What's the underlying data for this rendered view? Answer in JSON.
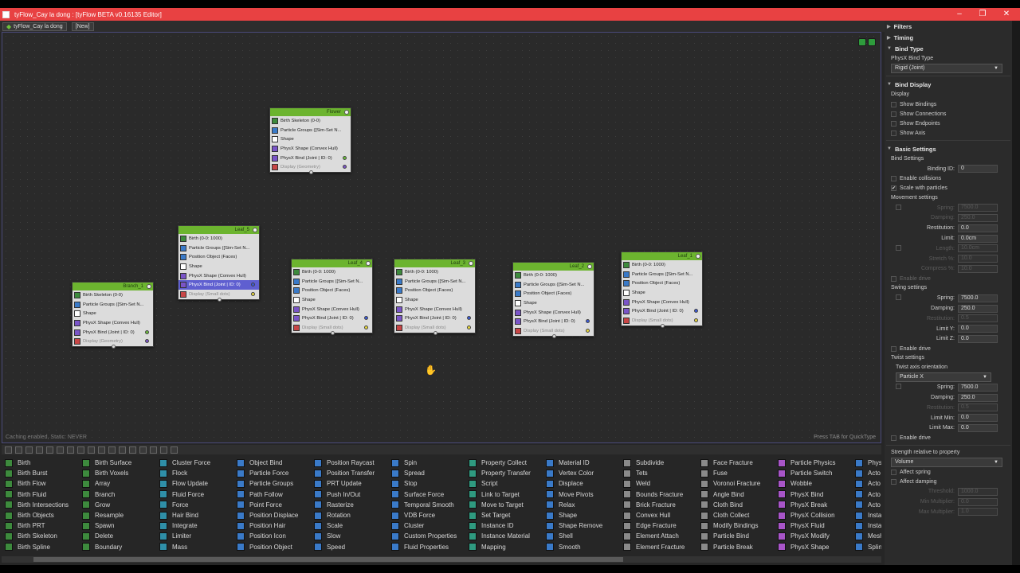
{
  "window": {
    "title": "tyFlow_Cay la dong : [tyFlow BETA v0.16135 Editor]"
  },
  "tabs": [
    "tyFlow_Cay la dong",
    "[New]"
  ],
  "editor": {
    "hint": "Press TAB for QuickType",
    "status": "Caching enabled, Static: NEVER"
  },
  "nodes": [
    {
      "name": "Flower",
      "ops": [
        {
          "label": "Birth Skeleton (0-0)",
          "color": "#3d8a3d"
        },
        {
          "label": "Particle Groups ([Sim-Set N...",
          "color": "#3a7ac8"
        },
        {
          "label": "Shape",
          "color": "#ffffff"
        },
        {
          "label": "PhysX Shape (Convex Hull)",
          "color": "#7a55c8"
        },
        {
          "label": "PhysX Bind (Joint | ID: 0)",
          "color": "#7a55c8",
          "dot": "#6cbf3c"
        },
        {
          "label": "Display (Geometry)",
          "color": "#c84646",
          "dim": true,
          "dot": "#7a55c8"
        }
      ]
    },
    {
      "name": "Leaf_5",
      "ops": [
        {
          "label": "Birth (0-0: 1000)",
          "color": "#3d8a3d"
        },
        {
          "label": "Particle Groups ([Sim-Set N...",
          "color": "#3a7ac8"
        },
        {
          "label": "Position Object (Faces)",
          "color": "#3a7ac8"
        },
        {
          "label": "Shape",
          "color": "#ffffff"
        },
        {
          "label": "PhysX Shape (Convex Hull)",
          "color": "#7a55c8"
        },
        {
          "label": "PhysX Bind (Joint | ID: 0)",
          "color": "#7a55c8",
          "sel": true,
          "dot": "#3a5ad8"
        },
        {
          "label": "Display (Small dots)",
          "color": "#c84646",
          "dim": true,
          "dot": "#e8d83a"
        }
      ]
    },
    {
      "name": "Branch_1",
      "ops": [
        {
          "label": "Birth Skeleton (0-0)",
          "color": "#3d8a3d"
        },
        {
          "label": "Particle Groups ([Sim-Set N...",
          "color": "#3a7ac8"
        },
        {
          "label": "Shape",
          "color": "#ffffff"
        },
        {
          "label": "PhysX Shape (Convex Hull)",
          "color": "#7a55c8"
        },
        {
          "label": "PhysX Bind (Joint | ID: 0)",
          "color": "#7a55c8",
          "dot": "#6cbf3c"
        },
        {
          "label": "Display (Geometry)",
          "color": "#c84646",
          "dim": true,
          "dot": "#7a55c8"
        }
      ]
    },
    {
      "name": "Leaf_4",
      "ops": [
        {
          "label": "Birth (0-0: 1000)",
          "color": "#3d8a3d"
        },
        {
          "label": "Particle Groups ([Sim-Set N...",
          "color": "#3a7ac8"
        },
        {
          "label": "Position Object (Faces)",
          "color": "#3a7ac8"
        },
        {
          "label": "Shape",
          "color": "#ffffff"
        },
        {
          "label": "PhysX Shape (Convex Hull)",
          "color": "#7a55c8"
        },
        {
          "label": "PhysX Bind (Joint | ID: 0)",
          "color": "#7a55c8",
          "dot": "#3a5ad8"
        },
        {
          "label": "Display (Small dots)",
          "color": "#c84646",
          "dim": true,
          "dot": "#e8d83a"
        }
      ]
    },
    {
      "name": "Leaf_3",
      "ops": [
        {
          "label": "Birth (0-0: 1000)",
          "color": "#3d8a3d"
        },
        {
          "label": "Particle Groups ([Sim-Set N...",
          "color": "#3a7ac8"
        },
        {
          "label": "Position Object (Faces)",
          "color": "#3a7ac8"
        },
        {
          "label": "Shape",
          "color": "#ffffff"
        },
        {
          "label": "PhysX Shape (Convex Hull)",
          "color": "#7a55c8"
        },
        {
          "label": "PhysX Bind (Joint | ID: 0)",
          "color": "#7a55c8",
          "dot": "#3a5ad8"
        },
        {
          "label": "Display (Small dots)",
          "color": "#c84646",
          "dim": true,
          "dot": "#e8d83a"
        }
      ]
    },
    {
      "name": "Leaf_2",
      "ops": [
        {
          "label": "Birth (0-0: 1000)",
          "color": "#3d8a3d"
        },
        {
          "label": "Particle Groups ([Sim-Set N...",
          "color": "#3a7ac8"
        },
        {
          "label": "Position Object (Faces)",
          "color": "#3a7ac8"
        },
        {
          "label": "Shape",
          "color": "#ffffff"
        },
        {
          "label": "PhysX Shape (Convex Hull)",
          "color": "#7a55c8"
        },
        {
          "label": "PhysX Bind (Joint | ID: 0)",
          "color": "#7a55c8",
          "dot": "#3a5ad8"
        },
        {
          "label": "Display (Small dots)",
          "color": "#c84646",
          "dim": true,
          "dot": "#e8d83a"
        }
      ]
    },
    {
      "name": "Leaf_1",
      "ops": [
        {
          "label": "Birth (0-0: 1000)",
          "color": "#3d8a3d"
        },
        {
          "label": "Particle Groups ([Sim-Set N...",
          "color": "#3a7ac8"
        },
        {
          "label": "Position Object (Faces)",
          "color": "#3a7ac8"
        },
        {
          "label": "Shape",
          "color": "#ffffff"
        },
        {
          "label": "PhysX Shape (Convex Hull)",
          "color": "#7a55c8"
        },
        {
          "label": "PhysX Bind (Joint | ID: 0)",
          "color": "#7a55c8",
          "dot": "#3a5ad8"
        },
        {
          "label": "Display (Small dots)",
          "color": "#c84646",
          "dim": true,
          "dot": "#e8d83a"
        }
      ]
    }
  ],
  "palette": [
    {
      "color": "#3d8a3d",
      "items": [
        "Birth",
        "Birth Burst",
        "Birth Flow",
        "Birth Fluid",
        "Birth Intersections",
        "Birth Objects",
        "Birth PRT",
        "Birth Skeleton",
        "Birth Spline"
      ]
    },
    {
      "color": "#3d8a3d",
      "items": [
        "Birth Surface",
        "Birth Voxels",
        "Array",
        "Branch",
        "Grow",
        "Resample",
        "Spawn",
        "Delete",
        "Boundary"
      ]
    },
    {
      "color": "#2f8fa8",
      "items": [
        "Cluster Force",
        "Flock",
        "Flow Update",
        "Fluid Force",
        "Force",
        "Hair Bind",
        "Integrate",
        "Limiter",
        "Mass"
      ]
    },
    {
      "color": "#3a7ac8",
      "items": [
        "Object Bind",
        "Particle Force",
        "Particle Groups",
        "Path Follow",
        "Point Force",
        "Position Displace",
        "Position Hair",
        "Position Icon",
        "Position Object"
      ]
    },
    {
      "color": "#3a7ac8",
      "items": [
        "Position Raycast",
        "Position Transfer",
        "PRT Update",
        "Push In/Out",
        "Rasterize",
        "Rotation",
        "Scale",
        "Slow",
        "Speed"
      ]
    },
    {
      "color": "#3a7ac8",
      "items": [
        "Spin",
        "Spread",
        "Stop",
        "Surface Force",
        "Temporal Smooth",
        "VDB Force",
        "Cluster",
        "Custom Properties",
        "Fluid Properties"
      ]
    },
    {
      "color": "#2f9a80",
      "items": [
        "Property Collect",
        "Property Transfer",
        "Script",
        "Link to Target",
        "Move to Target",
        "Set Target",
        "Instance ID",
        "Instance Material",
        "Mapping"
      ]
    },
    {
      "color": "#3a7ac8",
      "items": [
        "Material ID",
        "Vertex Color",
        "Displace",
        "Move Pivots",
        "Relax",
        "Shape",
        "Shape Remove",
        "Shell",
        "Smooth"
      ]
    },
    {
      "color": "#8a8a8a",
      "items": [
        "Subdivide",
        "Tets",
        "Weld",
        "Bounds Fracture",
        "Brick Fracture",
        "Convex Hull",
        "Edge Fracture",
        "Element Attach",
        "Element Fracture"
      ]
    },
    {
      "color": "#8a8a8a",
      "items": [
        "Face Fracture",
        "Fuse",
        "Voronoi Fracture",
        "Angle Bind",
        "Cloth Bind",
        "Cloth Collect",
        "Modify Bindings",
        "Particle Bind",
        "Particle Break"
      ]
    },
    {
      "color": "#a855c8",
      "items": [
        "Particle Physics",
        "Particle Switch",
        "Wobble",
        "PhysX Bind",
        "PhysX Break",
        "PhysX Collision",
        "PhysX Fluid",
        "PhysX Modify",
        "PhysX Shape"
      ]
    },
    {
      "color": "#3a7ac8",
      "items": [
        "PhysX",
        "Acto",
        "Acto",
        "Acto",
        "Acto",
        "Insta",
        "Insta",
        "Mesh",
        "Splin"
      ]
    }
  ],
  "panel": {
    "filters": "Filters",
    "timing": "Timing",
    "bind_type": {
      "title": "Bind Type",
      "label": "PhysX Bind Type",
      "value": "Rigid (Joint)"
    },
    "bind_display": {
      "title": "Bind Display",
      "label": "Display",
      "items": [
        "Show Bindings",
        "Show Connections",
        "Show Endpoints",
        "Show Axis"
      ]
    },
    "basic": {
      "title": "Basic Settings",
      "bind_settings": "Bind Settings",
      "binding_id_label": "Binding ID:",
      "binding_id": "0",
      "enable_collisions": "Enable collisions",
      "scale_with_particles": "Scale with particles"
    },
    "movement": {
      "title": "Movement settings",
      "spring_l": "Spring:",
      "spring": "7500.0",
      "damping_l": "Damping:",
      "damping": "250.0",
      "restitution_l": "Restitution:",
      "restitution": "0.0",
      "limit_l": "Limit:",
      "limit": "0.0cm",
      "length_l": "Length:",
      "length": "10.0cm",
      "stretch_l": "Stretch %:",
      "stretch": "10.0",
      "compress_l": "Compress %:",
      "compress": "10.0",
      "enable_drive": "Enable drive"
    },
    "swing": {
      "title": "Swing settings",
      "spring": "7500.0",
      "damping": "250.0",
      "restitution": "0.5",
      "limit_y_l": "Limit Y:",
      "limit_y": "0.0",
      "limit_z_l": "Limit Z:",
      "limit_z": "0.0",
      "enable_drive": "Enable drive"
    },
    "twist": {
      "title": "Twist settings",
      "axis_label": "Twist axis orientation",
      "axis": "Particle X",
      "spring": "7500.0",
      "damping": "250.0",
      "restitution": "0.5",
      "limit_min_l": "Limit Min:",
      "limit_min": "0.0",
      "limit_max_l": "Limit Max:",
      "limit_max": "0.0",
      "enable_drive": "Enable drive"
    },
    "strength": {
      "title": "Strength relative to property",
      "value": "Volume",
      "affect_spring": "Affect spring",
      "affect_damping": "Affect damping",
      "threshold_l": "Threshold:",
      "threshold": "1000.0",
      "min_mult_l": "Min Multiplier:",
      "min_mult": "0.0",
      "max_mult_l": "Max Multiplier:",
      "max_mult": "1.0"
    }
  }
}
